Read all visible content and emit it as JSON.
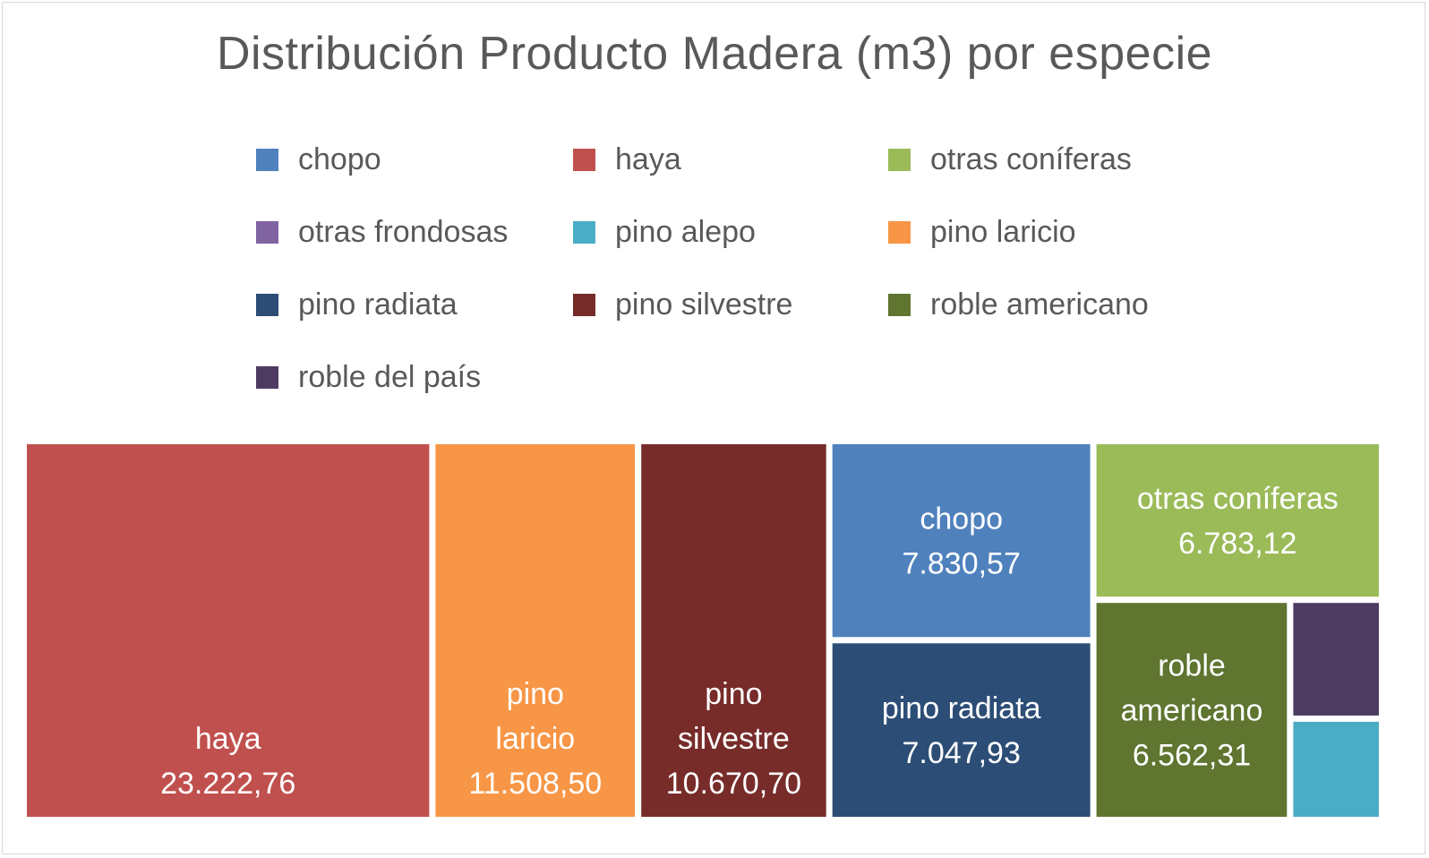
{
  "chart_data": {
    "type": "treemap",
    "title": "Distribución Producto Madera (m3) por especie",
    "legend_position": "top",
    "categories": [
      "chopo",
      "haya",
      "otras coníferas",
      "otras frondosas",
      "pino alepo",
      "pino laricio",
      "pino radiata",
      "pino silvestre",
      "roble americano",
      "roble del país"
    ],
    "series": [
      {
        "name": "haya",
        "label": "haya",
        "value_label": "23.222,76",
        "value": 23222.76,
        "color": "#c0504d"
      },
      {
        "name": "pino laricio",
        "label": "pino laricio",
        "value_label": "11.508,50",
        "value": 11508.5,
        "color": "#f79646"
      },
      {
        "name": "pino silvestre",
        "label": "pino silvestre",
        "value_label": "10.670,70",
        "value": 10670.7,
        "color": "#772c2a"
      },
      {
        "name": "chopo",
        "label": "chopo",
        "value_label": "7.830,57",
        "value": 7830.57,
        "color": "#4f81bd"
      },
      {
        "name": "pino radiata",
        "label": "pino radiata",
        "value_label": "7.047,93",
        "value": 7047.93,
        "color": "#2c4d75"
      },
      {
        "name": "otras coníferas",
        "label": "otras coníferas",
        "value_label": "6.783,12",
        "value": 6783.12,
        "color": "#9bbb59"
      },
      {
        "name": "roble americano",
        "label": "roble americano",
        "value_label": "6.562,31",
        "value": 6562.31,
        "color": "#5f7530"
      },
      {
        "name": "roble del país",
        "label": "",
        "value_label": "",
        "value": 1600,
        "color": "#4d3b62"
      },
      {
        "name": "pino alepo",
        "label": "",
        "value_label": "",
        "value": 1350,
        "color": "#4bacc6"
      },
      {
        "name": "otras frondosas",
        "label": "",
        "value_label": "",
        "value": 0,
        "color": "#8064a2"
      }
    ]
  },
  "legend": [
    {
      "label": "chopo",
      "color": "#4f81bd"
    },
    {
      "label": "haya",
      "color": "#c0504d"
    },
    {
      "label": "otras coníferas",
      "color": "#9bbb59"
    },
    {
      "label": "otras frondosas",
      "color": "#8064a2"
    },
    {
      "label": "pino alepo",
      "color": "#4bacc6"
    },
    {
      "label": "pino laricio",
      "color": "#f79646"
    },
    {
      "label": "pino radiata",
      "color": "#2c4d75"
    },
    {
      "label": "pino silvestre",
      "color": "#772c2a"
    },
    {
      "label": "roble americano",
      "color": "#5f7530"
    },
    {
      "label": "roble del país",
      "color": "#4d3b62"
    }
  ]
}
